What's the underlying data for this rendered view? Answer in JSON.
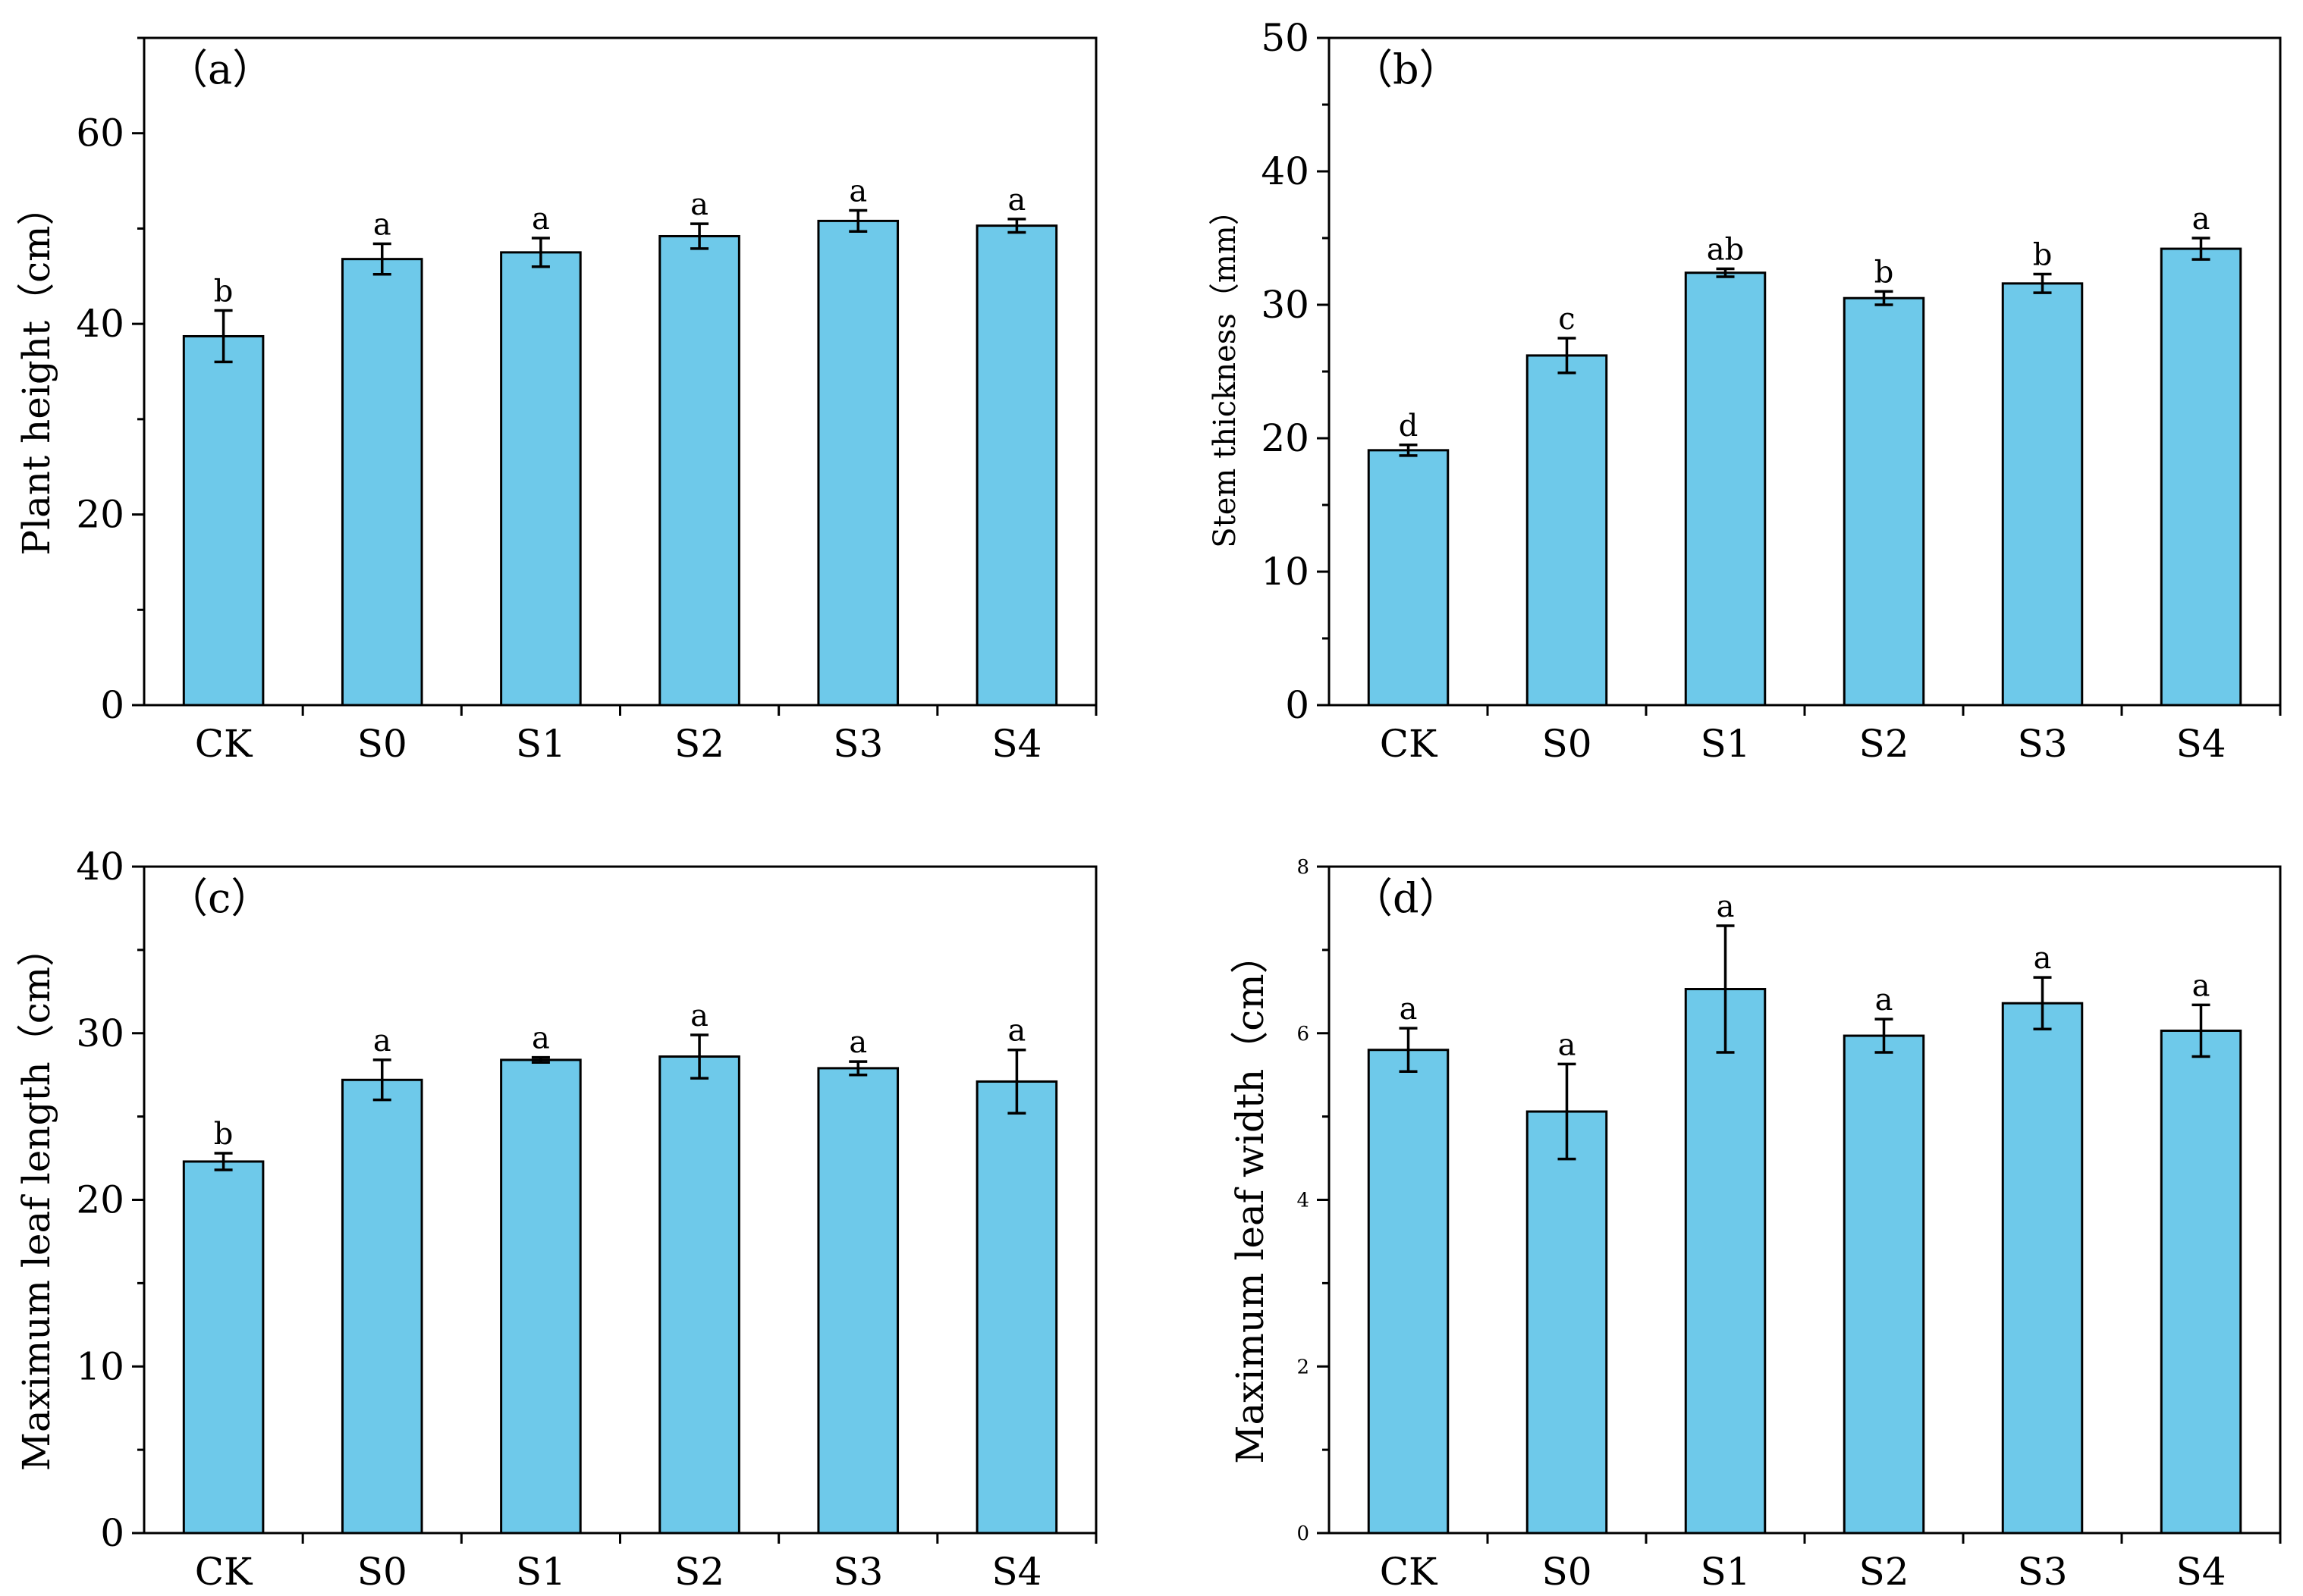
{
  "colors": {
    "bar_fill": "#6ec9ea",
    "axis": "#000000"
  },
  "chart_data": [
    {
      "type": "bar",
      "panel": "（a）",
      "ylabel": "Plant height（cm）",
      "categories": [
        "CK",
        "S0",
        "S1",
        "S2",
        "S3",
        "S4"
      ],
      "values": [
        38.7,
        46.8,
        47.5,
        49.2,
        50.8,
        50.3
      ],
      "errors": [
        2.7,
        1.6,
        1.5,
        1.3,
        1.1,
        0.7
      ],
      "significance": [
        "b",
        "a",
        "a",
        "a",
        "a",
        "a"
      ],
      "ylim": [
        0,
        70
      ],
      "yticks": [
        0,
        20,
        40,
        60
      ],
      "ytick_labels": [
        "0",
        "20",
        "40",
        "60"
      ],
      "minor_step": 10
    },
    {
      "type": "bar",
      "panel": "（b）",
      "ylabel": "Stem thickness（mm）",
      "categories": [
        "CK",
        "S0",
        "S1",
        "S2",
        "S3",
        "S4"
      ],
      "values": [
        19.1,
        26.2,
        32.4,
        30.5,
        31.6,
        34.2
      ],
      "errors": [
        0.4,
        1.3,
        0.3,
        0.5,
        0.7,
        0.8
      ],
      "significance": [
        "d",
        "c",
        "ab",
        "b",
        "b",
        "a"
      ],
      "ylim": [
        0,
        50
      ],
      "yticks": [
        0,
        10,
        20,
        30,
        40,
        50
      ],
      "ytick_labels": [
        "0",
        "10",
        "20",
        "30",
        "40",
        "50"
      ],
      "minor_step": 5
    },
    {
      "type": "bar",
      "panel": "（c）",
      "ylabel": "Maximum leaf length（cm）",
      "categories": [
        "CK",
        "S0",
        "S1",
        "S2",
        "S3",
        "S4"
      ],
      "values": [
        22.3,
        27.2,
        28.4,
        28.6,
        27.9,
        27.1
      ],
      "errors": [
        0.5,
        1.2,
        0.15,
        1.3,
        0.4,
        1.9
      ],
      "significance": [
        "b",
        "a",
        "a",
        "a",
        "a",
        "a"
      ],
      "ylim": [
        0,
        40
      ],
      "yticks": [
        0,
        10,
        20,
        30,
        40
      ],
      "ytick_labels": [
        "0",
        "10",
        "20",
        "30",
        "40"
      ],
      "minor_step": 5
    },
    {
      "type": "bar",
      "panel": "（d）",
      "ylabel": "Maximum leaf width（cm）",
      "categories": [
        "CK",
        "S0",
        "S1",
        "S2",
        "S3",
        "S4"
      ],
      "values": [
        5.8,
        5.06,
        6.53,
        5.97,
        6.36,
        6.03
      ],
      "errors": [
        0.26,
        0.57,
        0.76,
        0.2,
        0.31,
        0.31
      ],
      "significance": [
        "a",
        "a",
        "a",
        "a",
        "a",
        "a"
      ],
      "ylim": [
        0,
        8
      ],
      "yticks": [
        0,
        2,
        4,
        6,
        8
      ],
      "ytick_labels": [
        "0",
        "2",
        "4",
        "6",
        "8"
      ],
      "minor_step": 1
    }
  ]
}
